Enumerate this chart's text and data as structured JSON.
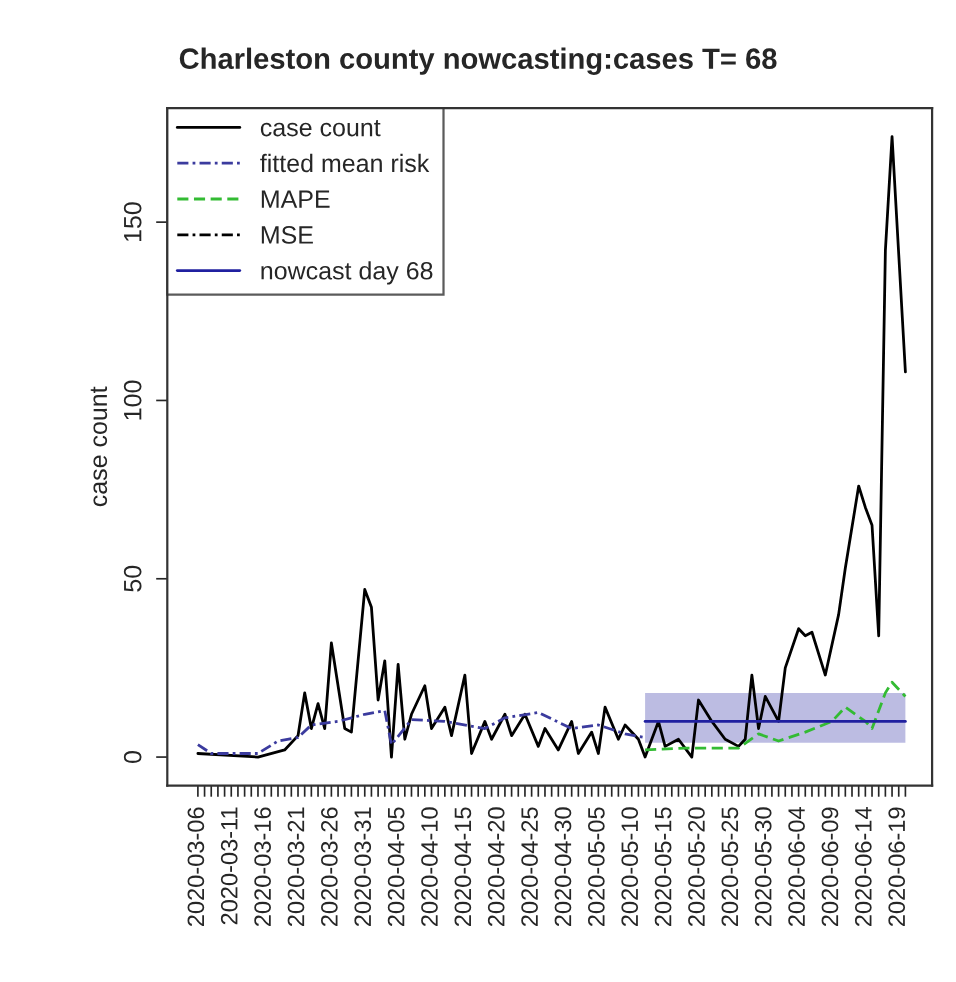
{
  "chart_data": {
    "type": "line",
    "title": "Charleston county nowcasting:cases T= 68",
    "ylabel": "case count",
    "xlim": [
      "2020-03-01T10:00",
      "2020-06-24"
    ],
    "ylim": [
      -8,
      182
    ],
    "yticks": [
      0,
      50,
      100,
      150
    ],
    "xticks": [
      {
        "value": "2020-03-06",
        "label": "2020-03-06"
      },
      {
        "value": "2020-03-07",
        "label": null
      },
      {
        "value": "2020-03-08",
        "label": null
      },
      {
        "value": "2020-03-09",
        "label": null
      },
      {
        "value": "2020-03-10",
        "label": null
      },
      {
        "value": "2020-03-11",
        "label": "2020-03-11"
      },
      {
        "value": "2020-03-12",
        "label": null
      },
      {
        "value": "2020-03-13",
        "label": null
      },
      {
        "value": "2020-03-14",
        "label": null
      },
      {
        "value": "2020-03-15",
        "label": null
      },
      {
        "value": "2020-03-16",
        "label": "2020-03-16"
      },
      {
        "value": "2020-03-17",
        "label": null
      },
      {
        "value": "2020-03-18",
        "label": null
      },
      {
        "value": "2020-03-19",
        "label": null
      },
      {
        "value": "2020-03-20",
        "label": null
      },
      {
        "value": "2020-03-21",
        "label": "2020-03-21"
      },
      {
        "value": "2020-03-22",
        "label": null
      },
      {
        "value": "2020-03-23",
        "label": null
      },
      {
        "value": "2020-03-24",
        "label": null
      },
      {
        "value": "2020-03-25",
        "label": null
      },
      {
        "value": "2020-03-26",
        "label": "2020-03-26"
      },
      {
        "value": "2020-03-27",
        "label": null
      },
      {
        "value": "2020-03-28",
        "label": null
      },
      {
        "value": "2020-03-29",
        "label": null
      },
      {
        "value": "2020-03-30",
        "label": null
      },
      {
        "value": "2020-03-31",
        "label": "2020-03-31"
      },
      {
        "value": "2020-04-01",
        "label": null
      },
      {
        "value": "2020-04-02",
        "label": null
      },
      {
        "value": "2020-04-03",
        "label": null
      },
      {
        "value": "2020-04-04",
        "label": null
      },
      {
        "value": "2020-04-05",
        "label": "2020-04-05"
      },
      {
        "value": "2020-04-06",
        "label": null
      },
      {
        "value": "2020-04-07",
        "label": null
      },
      {
        "value": "2020-04-08",
        "label": null
      },
      {
        "value": "2020-04-09",
        "label": null
      },
      {
        "value": "2020-04-10",
        "label": "2020-04-10"
      },
      {
        "value": "2020-04-11",
        "label": null
      },
      {
        "value": "2020-04-12",
        "label": null
      },
      {
        "value": "2020-04-13",
        "label": null
      },
      {
        "value": "2020-04-14",
        "label": null
      },
      {
        "value": "2020-04-15",
        "label": "2020-04-15"
      },
      {
        "value": "2020-04-16",
        "label": null
      },
      {
        "value": "2020-04-17",
        "label": null
      },
      {
        "value": "2020-04-18",
        "label": null
      },
      {
        "value": "2020-04-19",
        "label": null
      },
      {
        "value": "2020-04-20",
        "label": "2020-04-20"
      },
      {
        "value": "2020-04-21",
        "label": null
      },
      {
        "value": "2020-04-22",
        "label": null
      },
      {
        "value": "2020-04-23",
        "label": null
      },
      {
        "value": "2020-04-24",
        "label": null
      },
      {
        "value": "2020-04-25",
        "label": "2020-04-25"
      },
      {
        "value": "2020-04-26",
        "label": null
      },
      {
        "value": "2020-04-27",
        "label": null
      },
      {
        "value": "2020-04-28",
        "label": null
      },
      {
        "value": "2020-04-29",
        "label": null
      },
      {
        "value": "2020-04-30",
        "label": "2020-04-30"
      },
      {
        "value": "2020-05-01",
        "label": null
      },
      {
        "value": "2020-05-02",
        "label": null
      },
      {
        "value": "2020-05-03",
        "label": null
      },
      {
        "value": "2020-05-04",
        "label": null
      },
      {
        "value": "2020-05-05",
        "label": "2020-05-05"
      },
      {
        "value": "2020-05-06",
        "label": null
      },
      {
        "value": "2020-05-07",
        "label": null
      },
      {
        "value": "2020-05-08",
        "label": null
      },
      {
        "value": "2020-05-09",
        "label": null
      },
      {
        "value": "2020-05-10",
        "label": "2020-05-10"
      },
      {
        "value": "2020-05-11",
        "label": null
      },
      {
        "value": "2020-05-12",
        "label": null
      },
      {
        "value": "2020-05-13",
        "label": null
      },
      {
        "value": "2020-05-14",
        "label": null
      },
      {
        "value": "2020-05-15",
        "label": "2020-05-15"
      },
      {
        "value": "2020-05-16",
        "label": null
      },
      {
        "value": "2020-05-17",
        "label": null
      },
      {
        "value": "2020-05-18",
        "label": null
      },
      {
        "value": "2020-05-19",
        "label": null
      },
      {
        "value": "2020-05-20",
        "label": "2020-05-20"
      },
      {
        "value": "2020-05-21",
        "label": null
      },
      {
        "value": "2020-05-22",
        "label": null
      },
      {
        "value": "2020-05-23",
        "label": null
      },
      {
        "value": "2020-05-24",
        "label": null
      },
      {
        "value": "2020-05-25",
        "label": "2020-05-25"
      },
      {
        "value": "2020-05-26",
        "label": null
      },
      {
        "value": "2020-05-27",
        "label": null
      },
      {
        "value": "2020-05-28",
        "label": null
      },
      {
        "value": "2020-05-29",
        "label": null
      },
      {
        "value": "2020-05-30",
        "label": "2020-05-30"
      },
      {
        "value": "2020-05-31",
        "label": null
      },
      {
        "value": "2020-06-01",
        "label": null
      },
      {
        "value": "2020-06-02",
        "label": null
      },
      {
        "value": "2020-06-03",
        "label": null
      },
      {
        "value": "2020-06-04",
        "label": "2020-06-04"
      },
      {
        "value": "2020-06-05",
        "label": null
      },
      {
        "value": "2020-06-06",
        "label": null
      },
      {
        "value": "2020-06-07",
        "label": null
      },
      {
        "value": "2020-06-08",
        "label": null
      },
      {
        "value": "2020-06-09",
        "label": "2020-06-09"
      },
      {
        "value": "2020-06-10",
        "label": null
      },
      {
        "value": "2020-06-11",
        "label": null
      },
      {
        "value": "2020-06-12",
        "label": null
      },
      {
        "value": "2020-06-13",
        "label": null
      },
      {
        "value": "2020-06-14",
        "label": "2020-06-14"
      },
      {
        "value": "2020-06-15",
        "label": null
      },
      {
        "value": "2020-06-16",
        "label": null
      },
      {
        "value": "2020-06-17",
        "label": null
      },
      {
        "value": "2020-06-18",
        "label": null
      },
      {
        "value": "2020-06-19",
        "label": "2020-06-19"
      },
      {
        "value": "2020-06-20",
        "label": null
      }
    ],
    "grid": false,
    "legend": "top left",
    "marker": "none",
    "series": [
      {
        "name": "case count",
        "color": "#000000",
        "line_style": "solid",
        "x": [
          "2020-03-06",
          "2020-03-15",
          "2020-03-19",
          "2020-03-21",
          "2020-03-22",
          "2020-03-23",
          "2020-03-24",
          "2020-03-25",
          "2020-03-26",
          "2020-03-28",
          "2020-03-29",
          "2020-03-31",
          "2020-04-01",
          "2020-04-02",
          "2020-04-03",
          "2020-04-04",
          "2020-04-05",
          "2020-04-06",
          "2020-04-07",
          "2020-04-09",
          "2020-04-10",
          "2020-04-12",
          "2020-04-13",
          "2020-04-15",
          "2020-04-16",
          "2020-04-18",
          "2020-04-19",
          "2020-04-21",
          "2020-04-22",
          "2020-04-24",
          "2020-04-26",
          "2020-04-27",
          "2020-04-29",
          "2020-05-01",
          "2020-05-02",
          "2020-05-04",
          "2020-05-05",
          "2020-05-06",
          "2020-05-08",
          "2020-05-09",
          "2020-05-11",
          "2020-05-12",
          "2020-05-14",
          "2020-05-15",
          "2020-05-17",
          "2020-05-19",
          "2020-05-20",
          "2020-05-22",
          "2020-05-24",
          "2020-05-26",
          "2020-05-27",
          "2020-05-28",
          "2020-05-29",
          "2020-05-30",
          "2020-06-01",
          "2020-06-02",
          "2020-06-04",
          "2020-06-05",
          "2020-06-06",
          "2020-06-08",
          "2020-06-10",
          "2020-06-11",
          "2020-06-13",
          "2020-06-14",
          "2020-06-15",
          "2020-06-16",
          "2020-06-17",
          "2020-06-18",
          "2020-06-20"
        ],
        "values": [
          1,
          0,
          2,
          6,
          18,
          8,
          15,
          8,
          32,
          8,
          7,
          47,
          42,
          16,
          27,
          0,
          26,
          5,
          12,
          20,
          8,
          14,
          6,
          23,
          1,
          10,
          5,
          12,
          6,
          12,
          3,
          8,
          2,
          10,
          1,
          7,
          1,
          14,
          5,
          9,
          5,
          0,
          10,
          3,
          5,
          0,
          16,
          10,
          5,
          3,
          5,
          23,
          8,
          17,
          10,
          25,
          36,
          34,
          35,
          23,
          40,
          53,
          76,
          70,
          65,
          34,
          142,
          174,
          108
        ]
      },
      {
        "name": "fitted mean risk",
        "color": "#3b3b9e",
        "line_style": "dotted",
        "x": [
          "2020-03-06",
          "2020-03-08",
          "2020-03-15",
          "2020-03-18",
          "2020-03-21",
          "2020-03-23",
          "2020-03-27",
          "2020-03-31",
          "2020-04-03",
          "2020-04-04",
          "2020-04-07",
          "2020-04-12",
          "2020-04-18",
          "2020-04-21",
          "2020-04-26",
          "2020-05-01",
          "2020-05-05",
          "2020-05-09",
          "2020-05-12"
        ],
        "values": [
          3.5,
          1,
          1,
          4.5,
          5.5,
          9,
          10,
          12,
          13,
          3.5,
          10.5,
          10,
          8,
          11,
          12.5,
          8,
          9,
          6.5,
          5.5
        ]
      },
      {
        "name": "MAPE",
        "color": "#33bb33",
        "line_style": "dashed",
        "x": [
          "2020-05-12",
          "2020-05-18",
          "2020-05-26",
          "2020-05-29",
          "2020-06-01",
          "2020-06-05",
          "2020-06-09",
          "2020-06-11",
          "2020-06-14",
          "2020-06-15",
          "2020-06-17",
          "2020-06-18",
          "2020-06-20"
        ],
        "values": [
          2,
          2.5,
          2.5,
          6.5,
          4.5,
          7,
          10,
          14,
          10,
          8,
          18,
          21,
          17
        ]
      },
      {
        "name": "MSE",
        "color": "#000000",
        "line_style": "dotted"
      },
      {
        "name": "nowcast day 68",
        "color": "#2020a0",
        "line_style": "solid",
        "x": [
          "2020-05-12",
          "2020-06-20"
        ],
        "values": [
          10,
          10
        ],
        "lower": [
          4,
          4
        ],
        "upper": [
          18,
          18
        ]
      }
    ]
  }
}
